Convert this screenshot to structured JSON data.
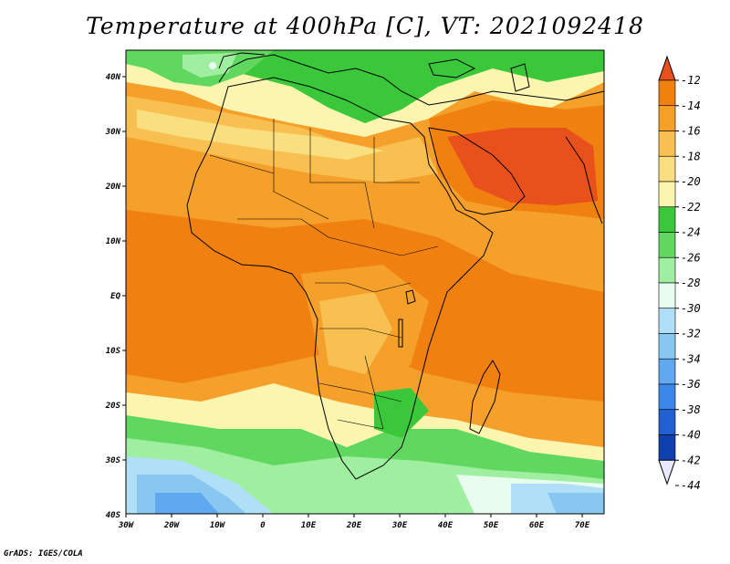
{
  "title": "Temperature at 400hPa [C], VT: 2021092418",
  "footer": "GrADS: IGES/COLA",
  "map": {
    "lon_ticks": [
      "30W",
      "20W",
      "10W",
      "0",
      "10E",
      "20E",
      "30E",
      "40E",
      "50E",
      "60E",
      "70E"
    ],
    "lat_ticks": [
      "40N",
      "30N",
      "20N",
      "10N",
      "EQ",
      "10S",
      "20S",
      "30S",
      "40S"
    ]
  },
  "colorbar": {
    "levels": [
      "-12",
      "-14",
      "-16",
      "-18",
      "-20",
      "-22",
      "-24",
      "-26",
      "-28",
      "-30",
      "-32",
      "-34",
      "-36",
      "-38",
      "-40",
      "-42",
      "-44"
    ],
    "colors": [
      "#e8501c",
      "#f08010",
      "#f5a02a",
      "#f8c050",
      "#fadf80",
      "#fcf5b0",
      "#3ac83a",
      "#60d860",
      "#a0eea0",
      "#e8fcf0",
      "#b0e0f8",
      "#88c8f0",
      "#60a8f0",
      "#3c88e8",
      "#2060d0",
      "#1040b0",
      "#081870"
    ]
  },
  "colors": {
    "very_warm": "#e8501c",
    "warm": "#f08010",
    "orange": "#f5a02a",
    "light_orange": "#f8c050",
    "yellow": "#fadf80",
    "pale_yellow": "#fcf5b0",
    "green": "#3ac83a",
    "mid_green": "#60d860",
    "light_green": "#a0eea0",
    "pale": "#e8fcf0",
    "blue_light": "#b0e0f8",
    "blue": "#88c8f0",
    "blue_mid": "#60a8f0"
  }
}
